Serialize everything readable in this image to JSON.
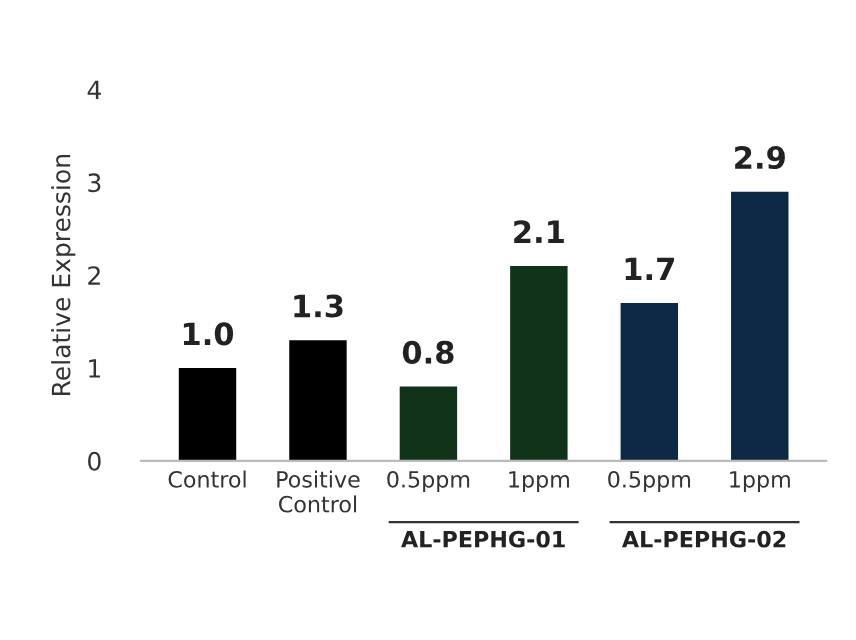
{
  "chart_data": {
    "type": "bar",
    "ylabel": "Relative Expression",
    "categories": [
      "Control",
      "Positive\nControl",
      "0.5ppm",
      "1ppm",
      "0.5ppm",
      "1ppm"
    ],
    "values": [
      1.0,
      1.3,
      0.8,
      2.1,
      1.7,
      2.9
    ],
    "colors": [
      "#000000",
      "#000000",
      "#10331a",
      "#10331a",
      "#0c2845",
      "#0c2845"
    ],
    "ylim": [
      0,
      4
    ],
    "yticks": [
      0,
      1,
      2,
      3,
      4
    ],
    "grid": false,
    "value_labels": [
      "1.0",
      "1.3",
      "0.8",
      "2.1",
      "1.7",
      "2.9"
    ],
    "annotations": [
      "AL-PEPHG-01",
      "AL-PEPHG-02"
    ]
  }
}
